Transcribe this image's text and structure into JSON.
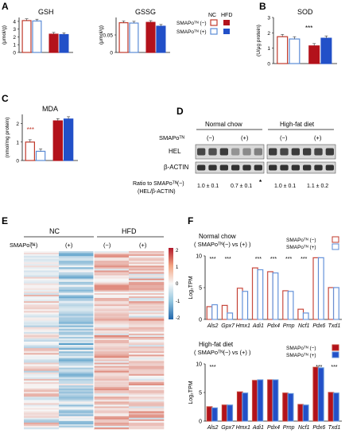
{
  "panel_letters": {
    "a": "A",
    "b": "B",
    "c": "C",
    "d": "D",
    "e": "E",
    "f": "F"
  },
  "legend_A": {
    "nc": "NC",
    "hfd": "HFD",
    "minus": "SMAPoᵀᴺ (−)",
    "plus": "SMAPoᵀᴺ (+)"
  },
  "colors": {
    "nc_red": "#c0392b",
    "nc_blue": "#5b8bd6",
    "hfd_red": "#b3121b",
    "hfd_blue": "#2250c8",
    "pink_nc": "#f3a8a8",
    "lightblue_nc": "#a9c6f2"
  },
  "chart_data": [
    {
      "id": "GSH",
      "type": "bar",
      "title": "GSH",
      "ylabel": "(μmol/g)",
      "yticks": [
        "0",
        "1",
        "2",
        "3",
        "4"
      ],
      "ylim": [
        0,
        4.5
      ],
      "series": [
        {
          "name": "NC (−)",
          "values": [
            4.1
          ]
        },
        {
          "name": "NC (+)",
          "values": [
            4.05
          ]
        },
        {
          "name": "HFD (−)",
          "values": [
            2.35
          ]
        },
        {
          "name": "HFD (+)",
          "values": [
            2.3
          ]
        }
      ]
    },
    {
      "id": "GSSG",
      "type": "bar",
      "title": "GSSG",
      "ylabel": "(μmol/g)",
      "yticks": [
        "0",
        "0.05"
      ],
      "ylim": [
        0,
        0.1
      ],
      "series": [
        {
          "name": "NC (−)",
          "values": [
            0.085
          ]
        },
        {
          "name": "NC (+)",
          "values": [
            0.084
          ]
        },
        {
          "name": "HFD (−)",
          "values": [
            0.086
          ]
        },
        {
          "name": "HFD (+)",
          "values": [
            0.075
          ]
        }
      ]
    },
    {
      "id": "SOD",
      "type": "bar",
      "title": "SOD",
      "ylabel": "(U/μg protein)",
      "yticks": [
        "0",
        "1",
        "2",
        "3"
      ],
      "ylim": [
        0,
        3
      ],
      "series": [
        {
          "name": "NC (−)",
          "values": [
            1.75
          ]
        },
        {
          "name": "NC (+)",
          "values": [
            1.6
          ]
        },
        {
          "name": "HFD (−)",
          "values": [
            1.15
          ]
        },
        {
          "name": "HFD (+)",
          "values": [
            1.65
          ]
        }
      ]
    },
    {
      "id": "MDA",
      "type": "bar",
      "title": "MDA",
      "ylabel": "(nmol/mg protein)",
      "yticks": [
        "0",
        "1",
        "2"
      ],
      "ylim": [
        0,
        2.5
      ],
      "series": [
        {
          "name": "NC (−)",
          "values": [
            1.0
          ]
        },
        {
          "name": "NC (+)",
          "values": [
            0.5
          ]
        },
        {
          "name": "HFD (−)",
          "values": [
            2.15
          ]
        },
        {
          "name": "HFD (+)",
          "values": [
            2.25
          ]
        }
      ]
    },
    {
      "id": "F_NC",
      "type": "bar",
      "title": "Normal chow",
      "subtitle": "( SMAPoᵀᴺ(−) vs (+) )",
      "ylabel": "Log₂TPM",
      "yticks": [
        "0",
        "5",
        "10"
      ],
      "ylim": [
        0,
        10
      ],
      "categories": [
        "Als2",
        "Gpx7",
        "Hmx1",
        "Adi1",
        "Pdx4",
        "Prnp",
        "Ncf1",
        "Pdx6",
        "Txd1"
      ],
      "series": [
        {
          "name": "SMAPoᵀᴺ (−)",
          "values": [
            2.0,
            2.2,
            4.9,
            8.1,
            7.5,
            4.5,
            1.6,
            9.7,
            5.0
          ]
        },
        {
          "name": "SMAPoᵀᴺ (+)",
          "values": [
            2.3,
            1.0,
            4.4,
            7.8,
            7.3,
            4.4,
            1.0,
            9.7,
            5.0
          ]
        }
      ],
      "significance": [
        "***",
        "***",
        "",
        "***",
        "***",
        "***",
        "***",
        "",
        ""
      ]
    },
    {
      "id": "F_HFD",
      "type": "bar",
      "title": "High-fat diet",
      "subtitle": "( SMAPoᵀᴺ(−) vs (+) )",
      "ylabel": "Log₂TPM",
      "yticks": [
        "0",
        "5",
        "10"
      ],
      "ylim": [
        0,
        10
      ],
      "categories": [
        "Als2",
        "Gpx7",
        "Hmx1",
        "Adi1",
        "Pdx4",
        "Prnp",
        "Ncf1",
        "Pdx6",
        "Txd1"
      ],
      "series": [
        {
          "name": "SMAPoᵀᴺ (−)",
          "values": [
            2.5,
            2.8,
            5.1,
            7.1,
            7.2,
            4.9,
            2.9,
            9.4,
            5.0
          ]
        },
        {
          "name": "SMAPoᵀᴺ (+)",
          "values": [
            2.3,
            2.8,
            4.9,
            7.2,
            7.2,
            4.8,
            2.8,
            9.3,
            4.9
          ]
        }
      ],
      "significance": [
        "***",
        "",
        "",
        "",
        "",
        "",
        "",
        "***",
        "***"
      ]
    }
  ],
  "western": {
    "groups": [
      "Normal chow",
      "High-fat diet"
    ],
    "label": "SMAPoᵀᴺ",
    "treatments": [
      "(−)",
      "(+)",
      "(−)",
      "(+)"
    ],
    "rows": [
      "HEL",
      "β-ACTIN"
    ],
    "ratio_label": "Ratio to SMAPoᵀᴺ(−)",
    "ratio_label2": "(HEL/β-ACTIN)",
    "ratios": [
      "1.0 ± 0.1",
      "0.7 ± 0.1",
      "1.0 ± 0.1",
      "1.1 ± 0.2"
    ],
    "ratio_mark": "*"
  },
  "heatmap": {
    "groups": [
      "NC",
      "HFD"
    ],
    "label": "SMAPoᵀᴺ",
    "treatments": [
      "(−)",
      "(+)",
      "(−)",
      "(+)"
    ],
    "scale_ticks": [
      "2",
      "1",
      "0",
      "-1",
      "-2"
    ]
  }
}
